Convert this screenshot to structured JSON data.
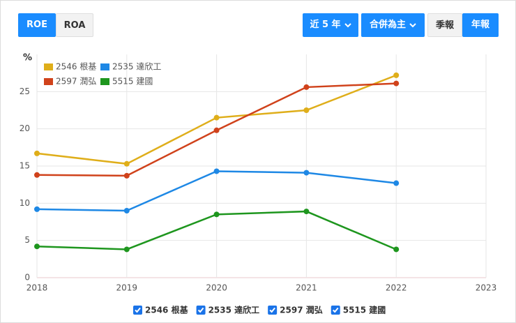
{
  "controls": {
    "tabs": [
      "ROE",
      "ROA"
    ],
    "period": "近 5 年",
    "consolidation": "合併為主",
    "report_types": [
      "季報",
      "年報"
    ]
  },
  "chart_data": {
    "type": "line",
    "ylabel": "%",
    "x": [
      2018,
      2019,
      2020,
      2021,
      2022
    ],
    "xlim": [
      2018,
      2023
    ],
    "xticks": [
      2018,
      2019,
      2020,
      2021,
      2022,
      2023
    ],
    "ylim": [
      0,
      30
    ],
    "yticks": [
      0,
      5,
      10,
      15,
      20,
      25
    ],
    "grid": true,
    "series": [
      {
        "name": "2546 根基",
        "color": "#dfae1a",
        "values": [
          16.7,
          15.3,
          21.5,
          22.5,
          27.2
        ]
      },
      {
        "name": "2535 達欣工",
        "color": "#1e88e5",
        "values": [
          9.2,
          9.0,
          14.3,
          14.1,
          12.7
        ]
      },
      {
        "name": "2597 潤弘",
        "color": "#d0421b",
        "values": [
          13.8,
          13.7,
          19.8,
          25.6,
          26.1
        ]
      },
      {
        "name": "5515 建國",
        "color": "#1e961e",
        "values": [
          4.2,
          3.8,
          8.5,
          8.9,
          3.8
        ]
      }
    ]
  }
}
